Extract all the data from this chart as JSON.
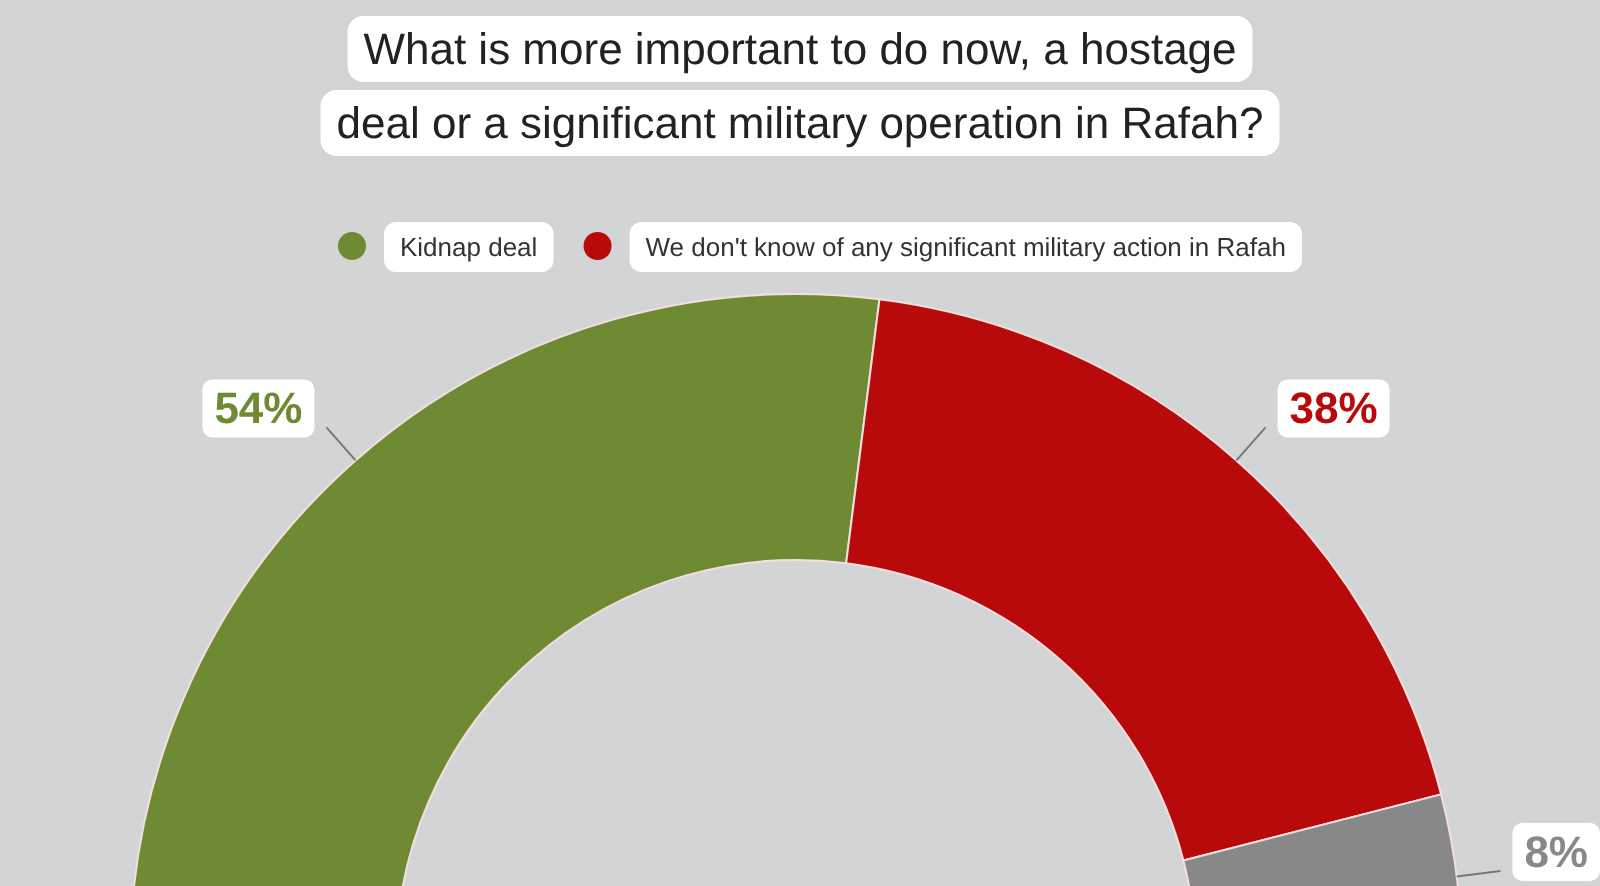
{
  "chart_data": {
    "type": "donut",
    "title": "What is more important to do now, a hostage deal or a significant military operation in Rafah?",
    "categories": [
      "Kidnap deal",
      "We don't know of any significant military action in Rafah",
      null
    ],
    "values": [
      54,
      38,
      8
    ],
    "colors": [
      "#6e8b33",
      "#b80a0a",
      "#888888"
    ],
    "value_labels": [
      "54%",
      "38%",
      "8%"
    ],
    "legend": "top"
  }
}
